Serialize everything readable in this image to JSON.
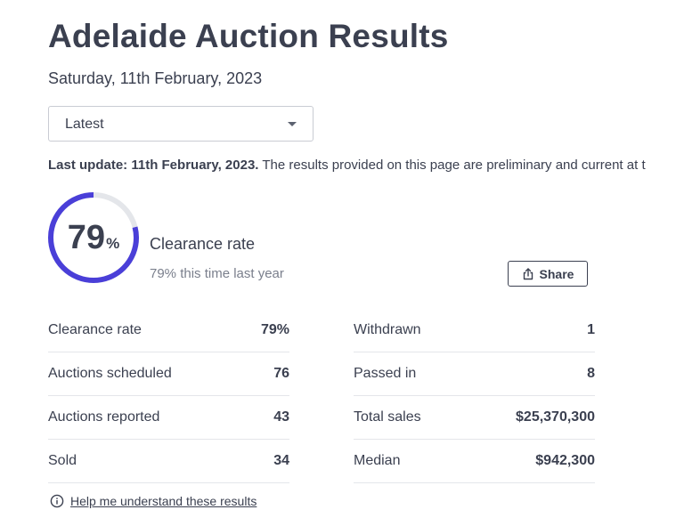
{
  "page": {
    "title": "Adelaide Auction Results",
    "date": "Saturday, 11th February, 2023"
  },
  "filter": {
    "selected": "Latest"
  },
  "update": {
    "bold": "Last update: 11th February, 2023.",
    "text": " The results provided on this page are preliminary and current at t"
  },
  "clearance": {
    "value": "79",
    "unit": "%",
    "fraction": 0.79,
    "label": "Clearance rate",
    "last_year": "79% this time last year",
    "accent_color": "#4a3fd8",
    "track_color": "#e4e6ea"
  },
  "share": {
    "label": "Share"
  },
  "stats_left": [
    {
      "label": "Clearance rate",
      "value": "79%"
    },
    {
      "label": "Auctions scheduled",
      "value": "76"
    },
    {
      "label": "Auctions reported",
      "value": "43"
    },
    {
      "label": "Sold",
      "value": "34"
    }
  ],
  "stats_right": [
    {
      "label": "Withdrawn",
      "value": "1"
    },
    {
      "label": "Passed in",
      "value": "8"
    },
    {
      "label": "Total sales",
      "value": "$25,370,300"
    },
    {
      "label": "Median",
      "value": "$942,300"
    }
  ],
  "help": {
    "label": "Help me understand these results"
  }
}
